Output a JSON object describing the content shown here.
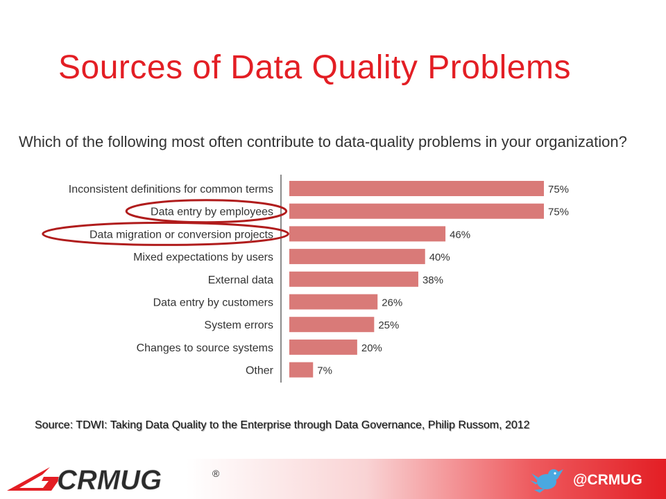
{
  "slide": {
    "title": "Sources of Data Quality Problems",
    "source": "Source: TDWI: Taking Data Quality to the Enterprise through Data Governance, Philip Russom, 2012"
  },
  "chart_data": {
    "type": "bar",
    "orientation": "horizontal",
    "title": "Which of the following most often contribute to data-quality problems in your organization?",
    "categories": [
      "Inconsistent definitions for common terms",
      "Data entry by employees",
      "Data migration or conversion projects",
      "Mixed expectations by users",
      "External data",
      "Data entry by customers",
      "System errors",
      "Changes to source systems",
      "Other"
    ],
    "values": [
      75,
      75,
      46,
      40,
      38,
      26,
      25,
      20,
      7
    ],
    "value_labels": [
      "75%",
      "75%",
      "46%",
      "40%",
      "38%",
      "26%",
      "25%",
      "20%",
      "7%"
    ],
    "unit": "%",
    "highlighted_categories": [
      "Data entry by employees",
      "Data migration or conversion projects"
    ],
    "grid": false,
    "legend": "none",
    "bar_color": "#d97a78",
    "highlight_color": "#b01c1c"
  },
  "footer": {
    "logo_text": "CRMUG",
    "registered_mark": "®",
    "twitter_handle": "@CRMUG",
    "icon": "twitter-bird-icon",
    "brand_color": "#e31e24"
  }
}
